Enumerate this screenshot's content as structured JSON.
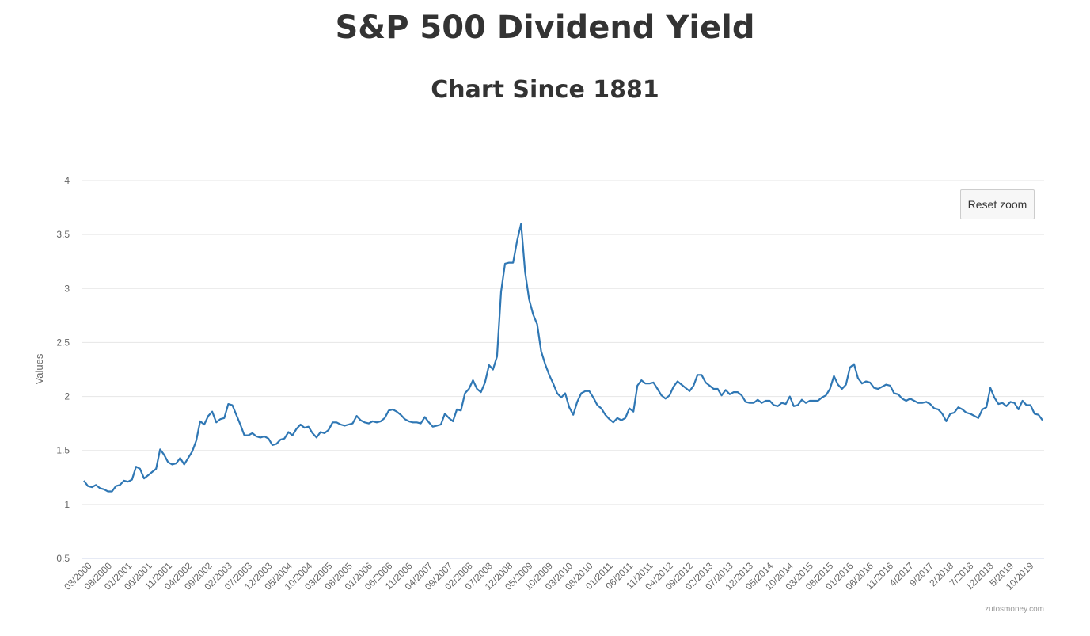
{
  "title": "S&P 500 Dividend Yield",
  "subtitle": "Chart Since 1881",
  "reset_zoom_label": "Reset zoom",
  "credit": "zutosmoney.com",
  "colors": {
    "line": "#2f77b4",
    "grid": "#e6e6e6",
    "axis": "#ccd6eb",
    "text": "#666666"
  },
  "chart_data": {
    "type": "line",
    "ylabel": "Values",
    "xlabel": "",
    "ylim": [
      0.5,
      4
    ],
    "yticks": [
      0.5,
      1,
      1.5,
      2,
      2.5,
      3,
      3.5,
      4
    ],
    "grid": true,
    "x_tick_labels": [
      "03/2000",
      "08/2000",
      "01/2001",
      "06/2001",
      "11/2001",
      "04/2002",
      "09/2002",
      "02/2003",
      "07/2003",
      "12/2003",
      "05/2004",
      "10/2004",
      "03/2005",
      "08/2005",
      "01/2006",
      "06/2006",
      "11/2006",
      "04/2007",
      "09/2007",
      "02/2008",
      "07/2008",
      "12/2008",
      "05/2009",
      "10/2009",
      "03/2010",
      "08/2010",
      "01/2011",
      "06/2011",
      "11/2011",
      "04/2012",
      "09/2012",
      "02/2013",
      "07/2013",
      "12/2013",
      "05/2014",
      "10/2014",
      "03/2015",
      "08/2015",
      "01/2016",
      "06/2016",
      "11/2016",
      "4/2017",
      "9/2017",
      "2/2018",
      "7/2018",
      "12/2018",
      "5/2019",
      "10/2019"
    ],
    "series": [
      {
        "values": [
          1.22,
          1.17,
          1.16,
          1.18,
          1.15,
          1.14,
          1.12,
          1.12,
          1.17,
          1.18,
          1.22,
          1.21,
          1.23,
          1.35,
          1.33,
          1.24,
          1.27,
          1.3,
          1.33,
          1.51,
          1.46,
          1.39,
          1.37,
          1.38,
          1.43,
          1.37,
          1.43,
          1.49,
          1.59,
          1.77,
          1.74,
          1.82,
          1.86,
          1.76,
          1.79,
          1.8,
          1.93,
          1.92,
          1.83,
          1.74,
          1.64,
          1.64,
          1.66,
          1.63,
          1.62,
          1.63,
          1.61,
          1.55,
          1.56,
          1.6,
          1.61,
          1.67,
          1.64,
          1.7,
          1.74,
          1.71,
          1.72,
          1.66,
          1.62,
          1.67,
          1.66,
          1.69,
          1.76,
          1.76,
          1.74,
          1.73,
          1.74,
          1.75,
          1.82,
          1.78,
          1.76,
          1.75,
          1.77,
          1.76,
          1.77,
          1.8,
          1.87,
          1.88,
          1.86,
          1.83,
          1.79,
          1.77,
          1.76,
          1.76,
          1.75,
          1.81,
          1.76,
          1.72,
          1.73,
          1.74,
          1.84,
          1.8,
          1.77,
          1.88,
          1.87,
          2.03,
          2.07,
          2.15,
          2.07,
          2.04,
          2.13,
          2.29,
          2.25,
          2.37,
          2.97,
          3.23,
          3.24,
          3.24,
          3.44,
          3.6,
          3.15,
          2.9,
          2.76,
          2.67,
          2.42,
          2.3,
          2.2,
          2.12,
          2.03,
          1.99,
          2.03,
          1.9,
          1.83,
          1.95,
          2.03,
          2.05,
          2.05,
          1.99,
          1.92,
          1.89,
          1.83,
          1.79,
          1.76,
          1.8,
          1.78,
          1.8,
          1.89,
          1.86,
          2.1,
          2.15,
          2.12,
          2.12,
          2.13,
          2.07,
          2.01,
          1.98,
          2.01,
          2.09,
          2.14,
          2.11,
          2.08,
          2.05,
          2.1,
          2.2,
          2.2,
          2.13,
          2.1,
          2.07,
          2.07,
          2.01,
          2.06,
          2.02,
          2.04,
          2.04,
          2.01,
          1.95,
          1.94,
          1.94,
          1.97,
          1.94,
          1.96,
          1.96,
          1.92,
          1.91,
          1.94,
          1.93,
          2.0,
          1.91,
          1.92,
          1.97,
          1.94,
          1.96,
          1.96,
          1.96,
          1.99,
          2.01,
          2.07,
          2.19,
          2.11,
          2.07,
          2.11,
          2.27,
          2.3,
          2.17,
          2.12,
          2.14,
          2.13,
          2.08,
          2.07,
          2.09,
          2.11,
          2.1,
          2.03,
          2.02,
          1.98,
          1.96,
          1.98,
          1.96,
          1.94,
          1.94,
          1.95,
          1.93,
          1.89,
          1.88,
          1.84,
          1.77,
          1.84,
          1.85,
          1.9,
          1.88,
          1.85,
          1.84,
          1.82,
          1.8,
          1.88,
          1.9,
          2.08,
          1.99,
          1.93,
          1.94,
          1.91,
          1.95,
          1.94,
          1.88,
          1.96,
          1.92,
          1.92,
          1.84,
          1.83,
          1.78
        ]
      }
    ]
  }
}
